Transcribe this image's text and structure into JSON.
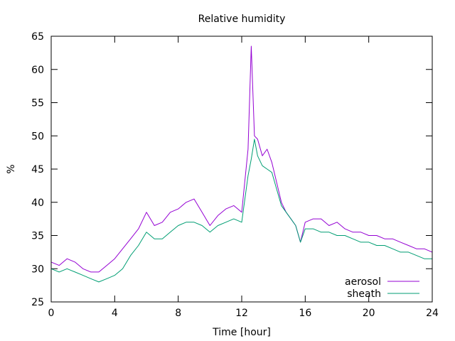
{
  "chart_data": {
    "type": "line",
    "title": "Relative humidity",
    "xlabel": "Time [hour]",
    "ylabel": "%",
    "xlim": [
      0,
      24
    ],
    "ylim": [
      25,
      65
    ],
    "xticks": [
      0,
      4,
      8,
      12,
      16,
      20,
      24
    ],
    "yticks": [
      25,
      30,
      35,
      40,
      45,
      50,
      55,
      60,
      65
    ],
    "grid": false,
    "legend_position": "bottom-right",
    "series": [
      {
        "name": "aerosol",
        "color": "#9400d3",
        "x": [
          0,
          0.5,
          1,
          1.5,
          2,
          2.5,
          3,
          3.5,
          4,
          4.5,
          5,
          5.5,
          6,
          6.5,
          7,
          7.5,
          8,
          8.5,
          9,
          9.5,
          10,
          10.5,
          11,
          11.5,
          12,
          12.4,
          12.6,
          12.8,
          13,
          13.3,
          13.6,
          13.9,
          14.2,
          14.5,
          14.8,
          15.1,
          15.4,
          15.7,
          16,
          16.5,
          17,
          17.5,
          18,
          18.5,
          19,
          19.5,
          20,
          20.5,
          21,
          21.5,
          22,
          22.5,
          23,
          23.5,
          24
        ],
        "values": [
          31,
          30.5,
          31.5,
          31,
          30,
          29.5,
          29.5,
          30.5,
          31.5,
          33,
          34.5,
          36,
          38.5,
          36.5,
          37,
          38.5,
          39,
          40,
          40.5,
          38.5,
          36.5,
          38,
          39,
          39.5,
          38.5,
          48,
          63.5,
          50,
          49.5,
          47,
          48,
          46,
          43,
          40,
          38.5,
          37.5,
          36.5,
          34,
          37,
          37.5,
          37.5,
          36.5,
          37,
          36,
          35.5,
          35.5,
          35,
          35,
          34.5,
          34.5,
          34,
          33.5,
          33,
          33,
          32.5
        ]
      },
      {
        "name": "sheath",
        "color": "#009e73",
        "x": [
          0,
          0.5,
          1,
          1.5,
          2,
          2.5,
          3,
          3.5,
          4,
          4.5,
          5,
          5.5,
          6,
          6.5,
          7,
          7.5,
          8,
          8.5,
          9,
          9.5,
          10,
          10.5,
          11,
          11.5,
          12,
          12.4,
          12.6,
          12.8,
          13,
          13.3,
          13.6,
          13.9,
          14.2,
          14.5,
          14.8,
          15.1,
          15.4,
          15.7,
          16,
          16.5,
          17,
          17.5,
          18,
          18.5,
          19,
          19.5,
          20,
          20.5,
          21,
          21.5,
          22,
          22.5,
          23,
          23.5,
          24
        ],
        "values": [
          30,
          29.5,
          30,
          29.5,
          29,
          28.5,
          28,
          28.5,
          29,
          30,
          32,
          33.5,
          35.5,
          34.5,
          34.5,
          35.5,
          36.5,
          37,
          37,
          36.5,
          35.5,
          36.5,
          37,
          37.5,
          37,
          44,
          46.5,
          49.5,
          47,
          45.5,
          45,
          44.5,
          42,
          39.5,
          38.5,
          37.5,
          36.5,
          34,
          36,
          36,
          35.5,
          35.5,
          35,
          35,
          34.5,
          34,
          34,
          33.5,
          33.5,
          33,
          32.5,
          32.5,
          32,
          31.5,
          31.5
        ]
      }
    ]
  }
}
